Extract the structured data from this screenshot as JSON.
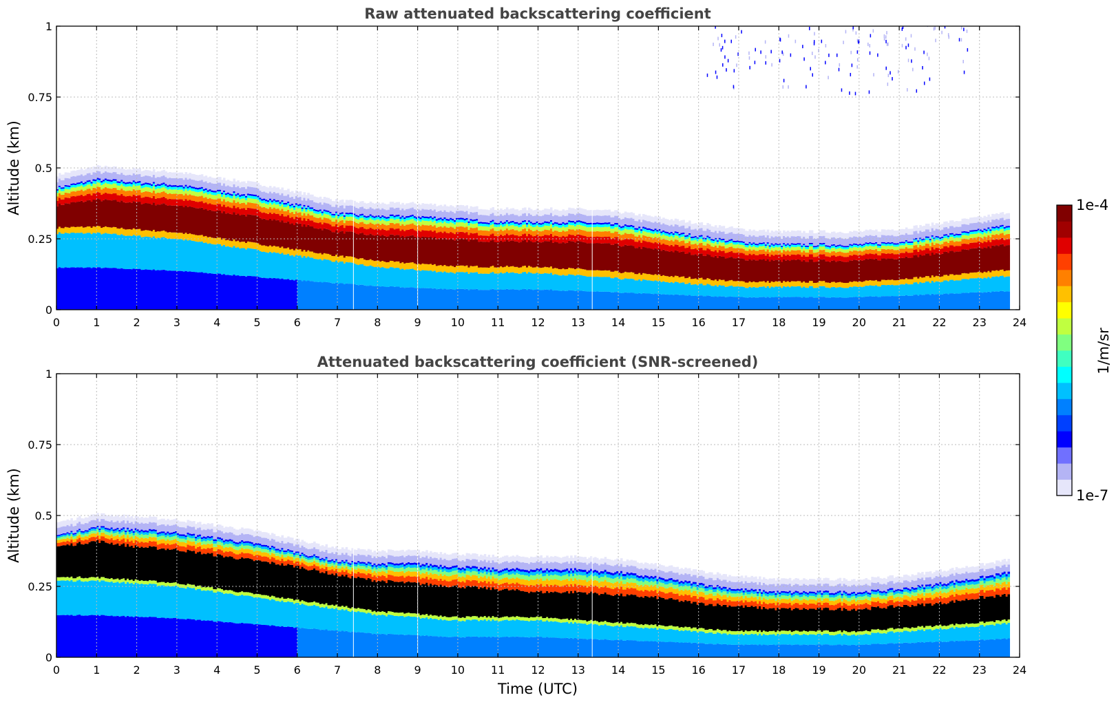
{
  "chart_data": [
    {
      "type": "heatmap",
      "title": "Raw attenuated backscattering coefficient",
      "xlabel": "",
      "ylabel": "Altitude (km)",
      "xlim": [
        0,
        24
      ],
      "ylim": [
        0,
        1
      ],
      "xticks": [
        "0",
        "1",
        "2",
        "3",
        "4",
        "5",
        "6",
        "7",
        "8",
        "9",
        "10",
        "11",
        "12",
        "13",
        "14",
        "15",
        "16",
        "17",
        "18",
        "19",
        "20",
        "21",
        "22",
        "23",
        "24"
      ],
      "yticks": [
        "0",
        "0.25",
        "0.5",
        "0.75",
        "1"
      ],
      "ytick_values": [
        0,
        0.25,
        0.5,
        0.75,
        1
      ],
      "data_end_time": 23.75,
      "layer_top_km": [
        [
          0,
          0.43
        ],
        [
          1,
          0.46
        ],
        [
          2,
          0.45
        ],
        [
          3,
          0.44
        ],
        [
          4,
          0.42
        ],
        [
          5,
          0.4
        ],
        [
          6,
          0.37
        ],
        [
          7,
          0.34
        ],
        [
          8,
          0.33
        ],
        [
          9,
          0.33
        ],
        [
          10,
          0.32
        ],
        [
          11,
          0.31
        ],
        [
          12,
          0.31
        ],
        [
          13,
          0.31
        ],
        [
          14,
          0.3
        ],
        [
          15,
          0.28
        ],
        [
          16,
          0.26
        ],
        [
          17,
          0.24
        ],
        [
          18,
          0.23
        ],
        [
          19,
          0.23
        ],
        [
          20,
          0.23
        ],
        [
          21,
          0.24
        ],
        [
          22,
          0.26
        ],
        [
          23,
          0.28
        ],
        [
          23.75,
          0.3
        ]
      ],
      "saturated_base_km": [
        [
          0,
          0.27
        ],
        [
          1,
          0.27
        ],
        [
          2,
          0.26
        ],
        [
          3,
          0.25
        ],
        [
          4,
          0.23
        ],
        [
          5,
          0.21
        ],
        [
          6,
          0.19
        ],
        [
          7,
          0.17
        ],
        [
          8,
          0.15
        ],
        [
          9,
          0.14
        ],
        [
          10,
          0.13
        ],
        [
          11,
          0.13
        ],
        [
          12,
          0.13
        ],
        [
          13,
          0.12
        ],
        [
          14,
          0.11
        ],
        [
          15,
          0.1
        ],
        [
          16,
          0.09
        ],
        [
          17,
          0.08
        ],
        [
          18,
          0.08
        ],
        [
          19,
          0.08
        ],
        [
          20,
          0.08
        ],
        [
          21,
          0.09
        ],
        [
          22,
          0.1
        ],
        [
          23,
          0.11
        ],
        [
          23.75,
          0.12
        ]
      ],
      "high_noise_band": {
        "time_range": [
          16.2,
          22.8
        ],
        "altitude_range_km": [
          0.75,
          1.0
        ]
      },
      "gaps_utc": [
        7.4,
        9.0,
        13.35
      ]
    },
    {
      "type": "heatmap",
      "title": "Attenuated backscattering coefficient (SNR-screened)",
      "xlabel": "Time (UTC)",
      "ylabel": "Altitude (km)",
      "xlim": [
        0,
        24
      ],
      "ylim": [
        0,
        1
      ],
      "xticks": [
        "0",
        "1",
        "2",
        "3",
        "4",
        "5",
        "6",
        "7",
        "8",
        "9",
        "10",
        "11",
        "12",
        "13",
        "14",
        "15",
        "16",
        "17",
        "18",
        "19",
        "20",
        "21",
        "22",
        "23",
        "24"
      ],
      "yticks": [
        "0",
        "0.25",
        "0.5",
        "0.75",
        "1"
      ],
      "ytick_values": [
        0,
        0.25,
        0.5,
        0.75,
        1
      ],
      "screened_color": "#000000",
      "screened_top_km": [
        [
          0,
          0.39
        ],
        [
          1,
          0.41
        ],
        [
          2,
          0.39
        ],
        [
          3,
          0.38
        ],
        [
          4,
          0.36
        ],
        [
          5,
          0.34
        ],
        [
          6,
          0.32
        ],
        [
          7,
          0.29
        ],
        [
          8,
          0.27
        ],
        [
          9,
          0.26
        ],
        [
          10,
          0.25
        ],
        [
          11,
          0.24
        ],
        [
          12,
          0.23
        ],
        [
          13,
          0.23
        ],
        [
          14,
          0.22
        ],
        [
          15,
          0.21
        ],
        [
          16,
          0.19
        ],
        [
          17,
          0.18
        ],
        [
          18,
          0.17
        ],
        [
          19,
          0.17
        ],
        [
          20,
          0.17
        ],
        [
          21,
          0.18
        ],
        [
          22,
          0.19
        ],
        [
          23,
          0.21
        ],
        [
          23.75,
          0.22
        ]
      ]
    }
  ],
  "colorbar": {
    "label": "1/m/sr",
    "min_label": "1e-7",
    "max_label": "1e-4",
    "scale": "log",
    "colors": [
      "#e6e6fa",
      "#b4b4f5",
      "#7070ff",
      "#0000ff",
      "#0040ff",
      "#0080ff",
      "#00c0ff",
      "#00ffff",
      "#40ffc0",
      "#80ff80",
      "#c0ff40",
      "#ffff00",
      "#ffc000",
      "#ff8000",
      "#ff4000",
      "#e00000",
      "#a00000",
      "#800000"
    ]
  }
}
